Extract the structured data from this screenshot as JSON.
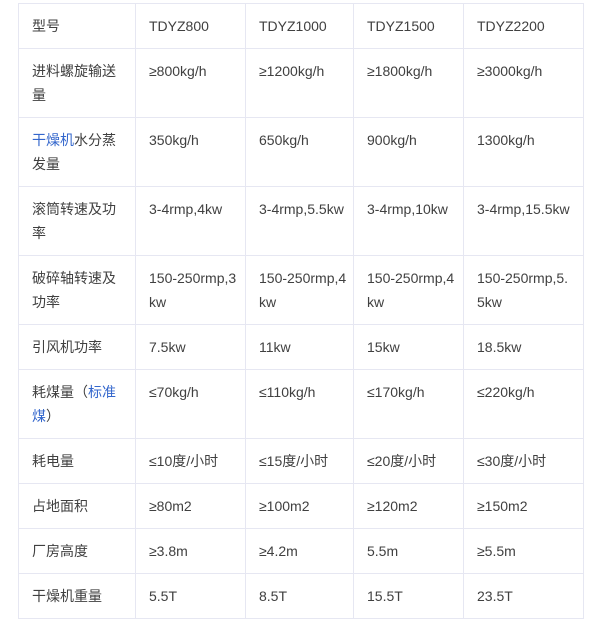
{
  "table": {
    "description": "dryer-model-specification-table",
    "text_color": "#404040",
    "link_color": "#3366cc",
    "border_color": "#e6e7f2",
    "rows": [
      {
        "label_pre": "型号",
        "label_link": "",
        "label_post": "",
        "values": [
          "TDYZ800",
          "TDYZ1000",
          "TDYZ1500",
          "TDYZ2200"
        ]
      },
      {
        "label_pre": "进料螺旋输送\n量",
        "label_link": "",
        "label_post": "",
        "values": [
          "≥800kg/h",
          "≥1200kg/h",
          "≥1800kg/h",
          "≥3000kg/h"
        ]
      },
      {
        "label_pre": "",
        "label_link": "干燥机",
        "label_post": "水分蒸\n发量",
        "values": [
          "350kg/h",
          "650kg/h",
          "900kg/h",
          "1300kg/h"
        ]
      },
      {
        "label_pre": "滚筒转速及功\n率",
        "label_link": "",
        "label_post": "",
        "values": [
          "3-4rmp,4kw",
          "3-4rmp,5.5kw",
          "3-4rmp,10kw",
          "3-4rmp,15.5kw"
        ]
      },
      {
        "label_pre": "破碎轴转速及\n功率",
        "label_link": "",
        "label_post": "",
        "values": [
          "150-250rmp,3\nkw",
          "150-250rmp,4\nkw",
          "150-250rmp,4\nkw",
          "150-250rmp,5.\n5kw"
        ]
      },
      {
        "label_pre": "引风机功率",
        "label_link": "",
        "label_post": "",
        "values": [
          "7.5kw",
          "11kw",
          "15kw",
          "18.5kw"
        ]
      },
      {
        "label_pre": "耗煤量（",
        "label_link": "标准\n煤",
        "label_post": "）",
        "values": [
          "≤70kg/h",
          "≤110kg/h",
          "≤170kg/h",
          "≤220kg/h"
        ]
      },
      {
        "label_pre": "耗电量",
        "label_link": "",
        "label_post": "",
        "values": [
          "≤10度/小时",
          "≤15度/小时",
          "≤20度/小时",
          "≤30度/小时"
        ]
      },
      {
        "label_pre": "占地面积",
        "label_link": "",
        "label_post": "",
        "values": [
          "≥80m2",
          "≥100m2",
          "≥120m2",
          "≥150m2"
        ]
      },
      {
        "label_pre": "厂房高度",
        "label_link": "",
        "label_post": "",
        "values": [
          "≥3.8m",
          "≥4.2m",
          "5.5m",
          "≥5.5m"
        ]
      },
      {
        "label_pre": "干燥机重量",
        "label_link": "",
        "label_post": "",
        "values": [
          "5.5T",
          "8.5T",
          "15.5T",
          "23.5T"
        ]
      }
    ]
  }
}
